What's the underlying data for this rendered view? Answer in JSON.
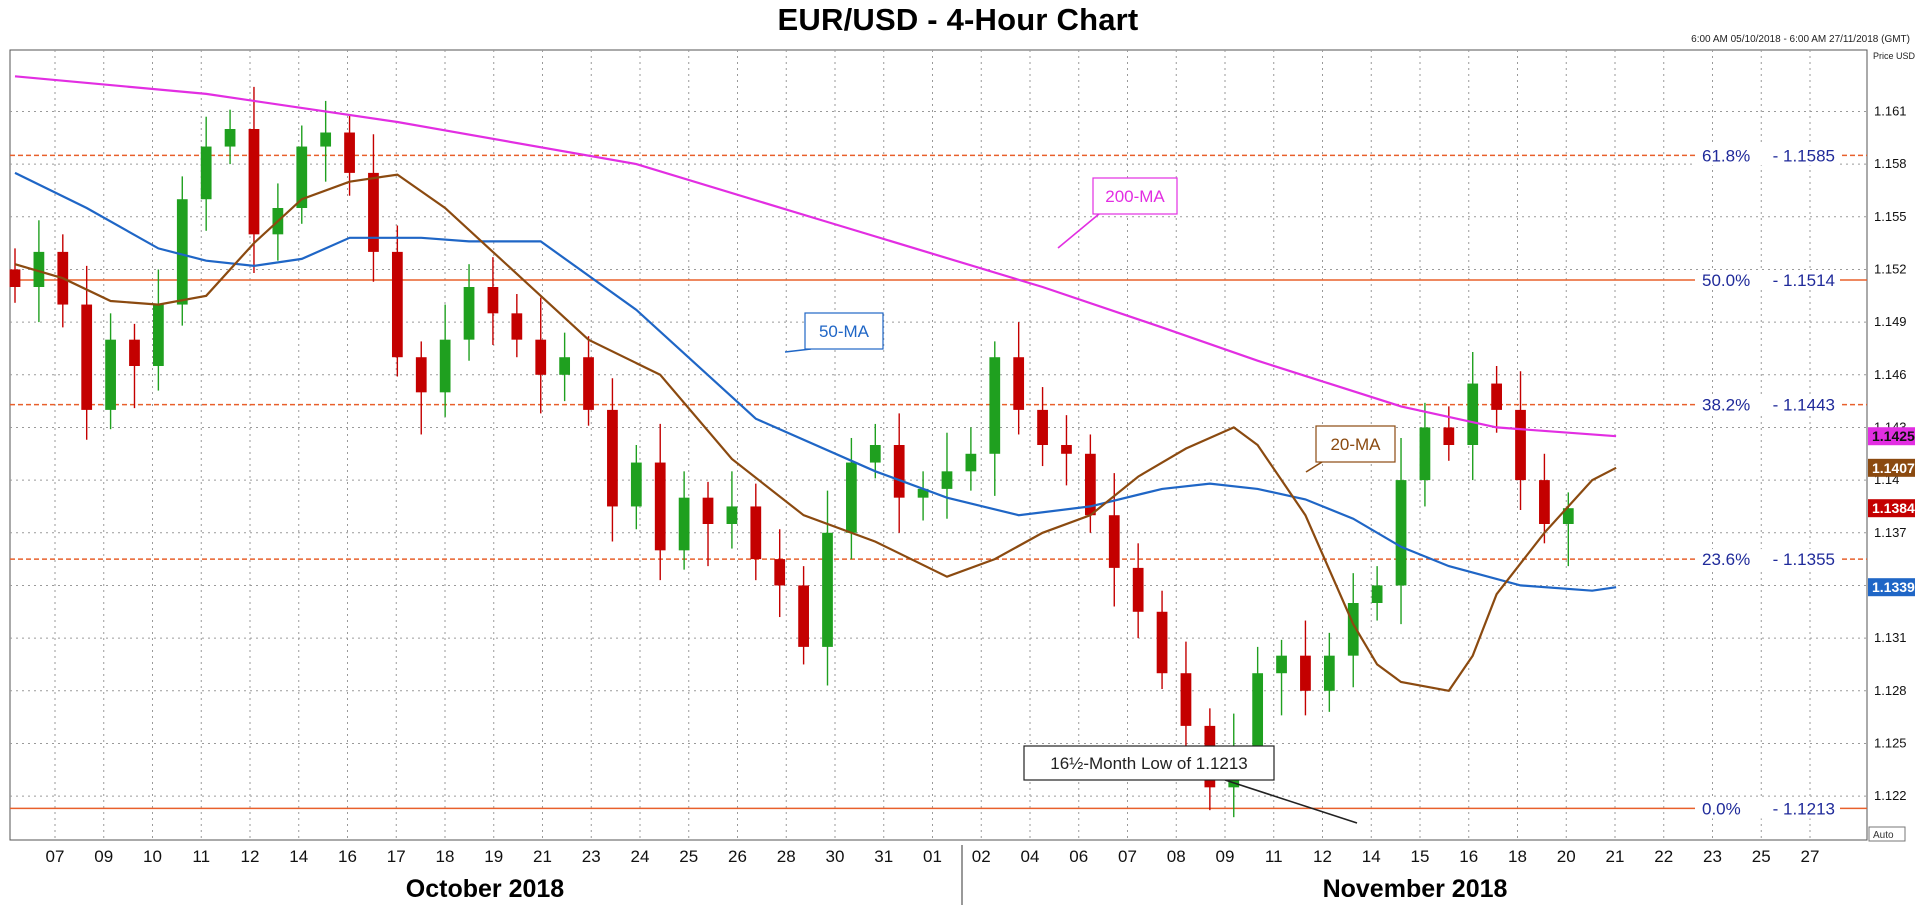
{
  "title": "EUR/USD - 4-Hour Chart",
  "range_note": "6:00 AM 05/10/2018 - 6:00 AM 27/11/2018 (GMT)",
  "unit_label": "Price USD",
  "auto_label": "Auto",
  "colors": {
    "bull": "#1fa01f",
    "bear": "#c40000",
    "ma20": "#8b4a10",
    "ma50": "#1f66c6",
    "ma200": "#e22ee2",
    "fib": "#e8602c",
    "fib_text": "#1f2a9a",
    "grid": "#9a9a9a"
  },
  "chart_data": {
    "type": "candlestick",
    "title": "EUR/USD - 4-Hour Chart",
    "ylim": [
      1.1195,
      1.1645
    ],
    "y_ticks": [
      "1.161",
      "1.158",
      "1.155",
      "1.152",
      "1.149",
      "1.146",
      "1.143",
      "1.14",
      "1.137",
      "1.134",
      "1.131",
      "1.128",
      "1.125",
      "1.122"
    ],
    "x_ticks": [
      "07",
      "09",
      "10",
      "11",
      "12",
      "14",
      "16",
      "17",
      "18",
      "19",
      "21",
      "23",
      "24",
      "25",
      "26",
      "28",
      "30",
      "31",
      "01",
      "02",
      "04",
      "06",
      "07",
      "08",
      "09",
      "11",
      "12",
      "14",
      "15",
      "16",
      "18",
      "20",
      "21",
      "22",
      "23",
      "25",
      "27"
    ],
    "month_labels": [
      "October 2018",
      "November 2018"
    ],
    "price_tags": [
      {
        "text": "1.1425",
        "series": "200-MA"
      },
      {
        "text": "1.1407",
        "series": "20-MA"
      },
      {
        "text": "1.1384",
        "series": "Last price"
      },
      {
        "text": "1.1339",
        "series": "50-MA"
      }
    ],
    "fibonacci": [
      {
        "label": "61.8%",
        "value": 1.1585,
        "text": "1.1585"
      },
      {
        "label": "50.0%",
        "value": 1.1514,
        "text": "1.1514"
      },
      {
        "label": "38.2%",
        "value": 1.1443,
        "text": "1.1443"
      },
      {
        "label": "23.6%",
        "value": 1.1355,
        "text": "1.1355"
      },
      {
        "label": "0.0%",
        "value": 1.1213,
        "text": "1.1213"
      }
    ],
    "annotations": [
      {
        "text": "200-MA"
      },
      {
        "text": "50-MA"
      },
      {
        "text": "20-MA"
      },
      {
        "text": "16½-Month Low of 1.1213"
      }
    ],
    "series": [
      {
        "name": "200-MA",
        "points": [
          [
            0,
            1.163
          ],
          [
            8,
            1.162
          ],
          [
            16,
            1.1604
          ],
          [
            26,
            1.158
          ],
          [
            34,
            1.1547
          ],
          [
            43,
            1.151
          ],
          [
            48,
            1.1487
          ],
          [
            52,
            1.1468
          ],
          [
            55,
            1.1455
          ],
          [
            58,
            1.1442
          ],
          [
            62,
            1.143
          ],
          [
            67,
            1.1425
          ]
        ]
      },
      {
        "name": "50-MA",
        "points": [
          [
            0,
            1.1575
          ],
          [
            3,
            1.1555
          ],
          [
            6,
            1.1532
          ],
          [
            8,
            1.1525
          ],
          [
            10,
            1.1522
          ],
          [
            12,
            1.1526
          ],
          [
            14,
            1.1538
          ],
          [
            17,
            1.1538
          ],
          [
            19,
            1.1536
          ],
          [
            22,
            1.1536
          ],
          [
            26,
            1.1497
          ],
          [
            31,
            1.1435
          ],
          [
            36,
            1.1405
          ],
          [
            39,
            1.139
          ],
          [
            42,
            1.138
          ],
          [
            45,
            1.1385
          ],
          [
            48,
            1.1395
          ],
          [
            50,
            1.1398
          ],
          [
            52,
            1.1395
          ],
          [
            54,
            1.1389
          ],
          [
            56,
            1.1378
          ],
          [
            58,
            1.1362
          ],
          [
            60,
            1.1351
          ],
          [
            63,
            1.134
          ],
          [
            66,
            1.1337
          ],
          [
            67,
            1.1339
          ]
        ]
      },
      {
        "name": "20-MA",
        "points": [
          [
            0,
            1.1523
          ],
          [
            2,
            1.1515
          ],
          [
            4,
            1.1502
          ],
          [
            6,
            1.15
          ],
          [
            8,
            1.1505
          ],
          [
            10,
            1.1535
          ],
          [
            12,
            1.156
          ],
          [
            14,
            1.157
          ],
          [
            16,
            1.1574
          ],
          [
            18,
            1.1555
          ],
          [
            20,
            1.153
          ],
          [
            22,
            1.1505
          ],
          [
            24,
            1.148
          ],
          [
            27,
            1.146
          ],
          [
            30,
            1.1412
          ],
          [
            33,
            1.138
          ],
          [
            36,
            1.1365
          ],
          [
            39,
            1.1345
          ],
          [
            41,
            1.1355
          ],
          [
            43,
            1.137
          ],
          [
            45,
            1.138
          ],
          [
            47,
            1.1402
          ],
          [
            49,
            1.1418
          ],
          [
            51,
            1.143
          ],
          [
            52,
            1.142
          ],
          [
            54,
            1.138
          ],
          [
            56,
            1.1318
          ],
          [
            57,
            1.1295
          ],
          [
            58,
            1.1285
          ],
          [
            60,
            1.128
          ],
          [
            61,
            1.13
          ],
          [
            62,
            1.1335
          ],
          [
            64,
            1.137
          ],
          [
            66,
            1.14
          ],
          [
            67,
            1.1407
          ]
        ]
      },
      {
        "name": "Price",
        "points": [
          [
            0,
            1.151
          ],
          [
            1,
            1.153
          ],
          [
            2,
            1.15
          ],
          [
            3,
            1.144
          ],
          [
            4,
            1.148
          ],
          [
            5,
            1.1465
          ],
          [
            6,
            1.15
          ],
          [
            7,
            1.156
          ],
          [
            8,
            1.159
          ],
          [
            9,
            1.16
          ],
          [
            10,
            1.154
          ],
          [
            11,
            1.1555
          ],
          [
            12,
            1.159
          ],
          [
            13,
            1.1598
          ],
          [
            14,
            1.1575
          ],
          [
            15,
            1.153
          ],
          [
            16,
            1.147
          ],
          [
            17,
            1.145
          ],
          [
            18,
            1.148
          ],
          [
            19,
            1.151
          ],
          [
            20,
            1.1495
          ],
          [
            21,
            1.148
          ],
          [
            22,
            1.146
          ],
          [
            23,
            1.147
          ],
          [
            24,
            1.144
          ],
          [
            25,
            1.1385
          ],
          [
            26,
            1.141
          ],
          [
            27,
            1.136
          ],
          [
            28,
            1.139
          ],
          [
            29,
            1.1375
          ],
          [
            30,
            1.1385
          ],
          [
            31,
            1.1355
          ],
          [
            32,
            1.134
          ],
          [
            33,
            1.1305
          ],
          [
            34,
            1.137
          ],
          [
            35,
            1.141
          ],
          [
            36,
            1.142
          ],
          [
            37,
            1.139
          ],
          [
            38,
            1.1395
          ],
          [
            39,
            1.1405
          ],
          [
            40,
            1.1415
          ],
          [
            41,
            1.147
          ],
          [
            42,
            1.144
          ],
          [
            43,
            1.142
          ],
          [
            44,
            1.1415
          ],
          [
            45,
            1.138
          ],
          [
            46,
            1.135
          ],
          [
            47,
            1.1325
          ],
          [
            48,
            1.129
          ],
          [
            49,
            1.126
          ],
          [
            50,
            1.1225
          ],
          [
            51,
            1.1245
          ],
          [
            52,
            1.129
          ],
          [
            53,
            1.13
          ],
          [
            54,
            1.128
          ],
          [
            55,
            1.13
          ],
          [
            56,
            1.133
          ],
          [
            57,
            1.134
          ],
          [
            58,
            1.14
          ],
          [
            59,
            1.143
          ],
          [
            60,
            1.142
          ],
          [
            61,
            1.1455
          ],
          [
            62,
            1.144
          ],
          [
            63,
            1.14
          ],
          [
            64,
            1.1375
          ],
          [
            65,
            1.1384
          ]
        ]
      }
    ]
  }
}
